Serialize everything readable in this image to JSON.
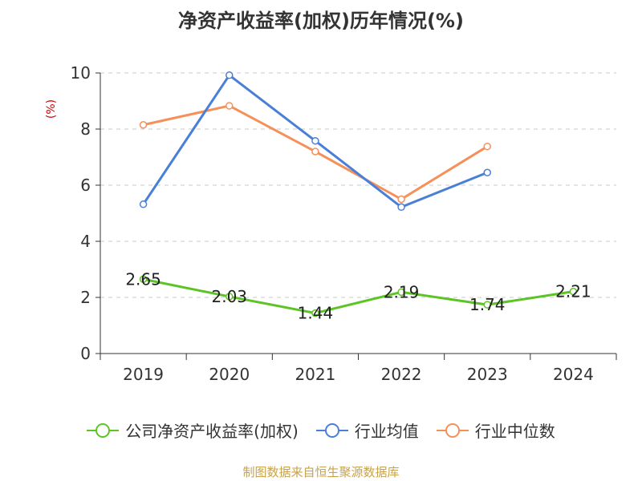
{
  "title": "净资产收益率(加权)历年情况(%)",
  "unit_label": "(%)",
  "source": "制图数据来自恒生聚源数据库",
  "chart_data": {
    "type": "line",
    "title": "净资产收益率(加权)历年情况(%)",
    "xlabel": "",
    "ylabel": "(%)",
    "categories": [
      "2019",
      "2020",
      "2021",
      "2022",
      "2023",
      "2024"
    ],
    "ylim": [
      0,
      10
    ],
    "yticks": [
      "0",
      "2",
      "4",
      "6",
      "8",
      "10"
    ],
    "grid": true,
    "legend_position": "bottom",
    "series": [
      {
        "name": "公司净资产收益率(加权)",
        "color": "#5cc425",
        "values": [
          2.65,
          2.03,
          1.44,
          2.19,
          1.74,
          2.21
        ],
        "labels": [
          "2.65",
          "2.03",
          "1.44",
          "2.19",
          "1.74",
          "2.21"
        ]
      },
      {
        "name": "行业均值",
        "color": "#4a7fd8",
        "values": [
          5.32,
          9.92,
          7.58,
          5.22,
          6.45,
          null
        ]
      },
      {
        "name": "行业中位数",
        "color": "#f5905a",
        "values": [
          8.15,
          8.83,
          7.2,
          5.5,
          7.38,
          null
        ]
      }
    ]
  }
}
